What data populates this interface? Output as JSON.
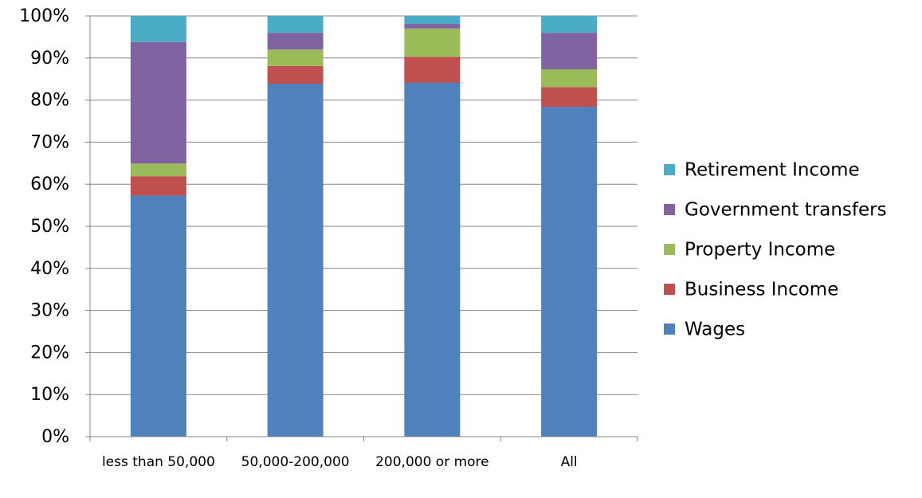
{
  "chart_data": {
    "type": "stacked_bar",
    "categories": [
      "less than 50,000",
      "50,000-200,000",
      "200,000 or more",
      "All"
    ],
    "series": [
      {
        "name": "Wages",
        "color": "#4f81bd",
        "values": [
          57.3,
          83.9,
          84.1,
          78.4
        ]
      },
      {
        "name": "Business Income",
        "color": "#c0504d",
        "values": [
          4.6,
          4.2,
          6.2,
          4.7
        ]
      },
      {
        "name": "Property Income",
        "color": "#9bbb59",
        "values": [
          3.0,
          3.9,
          6.7,
          4.2
        ]
      },
      {
        "name": "Government transfers",
        "color": "#8064a2",
        "values": [
          28.9,
          4.0,
          1.1,
          8.7
        ]
      },
      {
        "name": "Retirement Income",
        "color": "#4bacc6",
        "values": [
          6.2,
          4.0,
          1.9,
          4.0
        ]
      }
    ],
    "ylim": [
      0,
      100
    ],
    "yticks": [
      {
        "value": 0,
        "label": "0%"
      },
      {
        "value": 10,
        "label": "10%"
      },
      {
        "value": 20,
        "label": "20%"
      },
      {
        "value": 30,
        "label": "30%"
      },
      {
        "value": 40,
        "label": "40%"
      },
      {
        "value": 50,
        "label": "50%"
      },
      {
        "value": 60,
        "label": "60%"
      },
      {
        "value": 70,
        "label": "70%"
      },
      {
        "value": 80,
        "label": "80%"
      },
      {
        "value": 90,
        "label": "90%"
      },
      {
        "value": 100,
        "label": "100%"
      }
    ],
    "grid": true,
    "legend": "right"
  }
}
